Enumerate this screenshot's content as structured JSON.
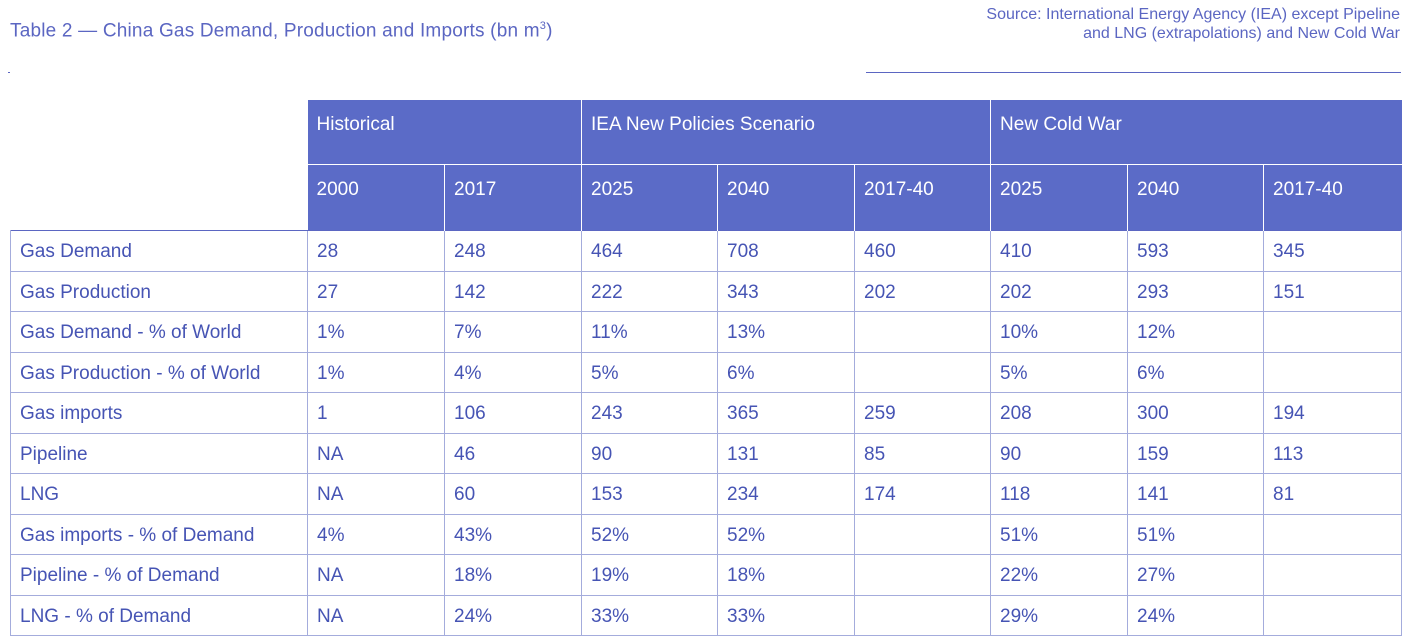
{
  "title": "Table 2 — China Gas Demand, Production and Imports (bn m",
  "title_sup": "3",
  "title_close": ")",
  "source": "Source:  International Energy Agency (IEA) except Pipeline and LNG (extrapolations) and New Cold War",
  "table": {
    "groups": [
      "Historical",
      "IEA New Policies Scenario",
      "New Cold War"
    ],
    "years": [
      "2000",
      "2017",
      "2025",
      "2040",
      "2017-40",
      "2025",
      "2040",
      "2017-40"
    ],
    "rows": [
      {
        "label": "Gas Demand",
        "cells": [
          "28",
          "248",
          "464",
          "708",
          "460",
          "410",
          "593",
          "345"
        ]
      },
      {
        "label": "Gas Production",
        "cells": [
          "27",
          "142",
          "222",
          "343",
          "202",
          "202",
          "293",
          "151"
        ]
      },
      {
        "label": "Gas Demand - % of World",
        "cells": [
          "1%",
          "7%",
          "11%",
          "13%",
          "",
          "10%",
          "12%",
          ""
        ]
      },
      {
        "label": "Gas Production - % of World",
        "cells": [
          "1%",
          "4%",
          "5%",
          "6%",
          "",
          "5%",
          "6%",
          ""
        ]
      },
      {
        "label": "Gas imports",
        "cells": [
          "1",
          "106",
          "243",
          "365",
          "259",
          "208",
          "300",
          "194"
        ]
      },
      {
        "label": "Pipeline",
        "cells": [
          "NA",
          "46",
          "90",
          "131",
          "85",
          "90",
          "159",
          "113"
        ]
      },
      {
        "label": "LNG",
        "cells": [
          "NA",
          "60",
          "153",
          "234",
          "174",
          "118",
          "141",
          "81"
        ]
      },
      {
        "label": "Gas imports - % of Demand",
        "cells": [
          "4%",
          "43%",
          "52%",
          "52%",
          "",
          "51%",
          "51%",
          ""
        ]
      },
      {
        "label": "Pipeline - % of Demand",
        "cells": [
          "NA",
          "18%",
          "19%",
          "18%",
          "",
          "22%",
          "27%",
          ""
        ]
      },
      {
        "label": "LNG - % of Demand",
        "cells": [
          "NA",
          "24%",
          "33%",
          "33%",
          "",
          "29%",
          "24%",
          ""
        ]
      }
    ]
  }
}
